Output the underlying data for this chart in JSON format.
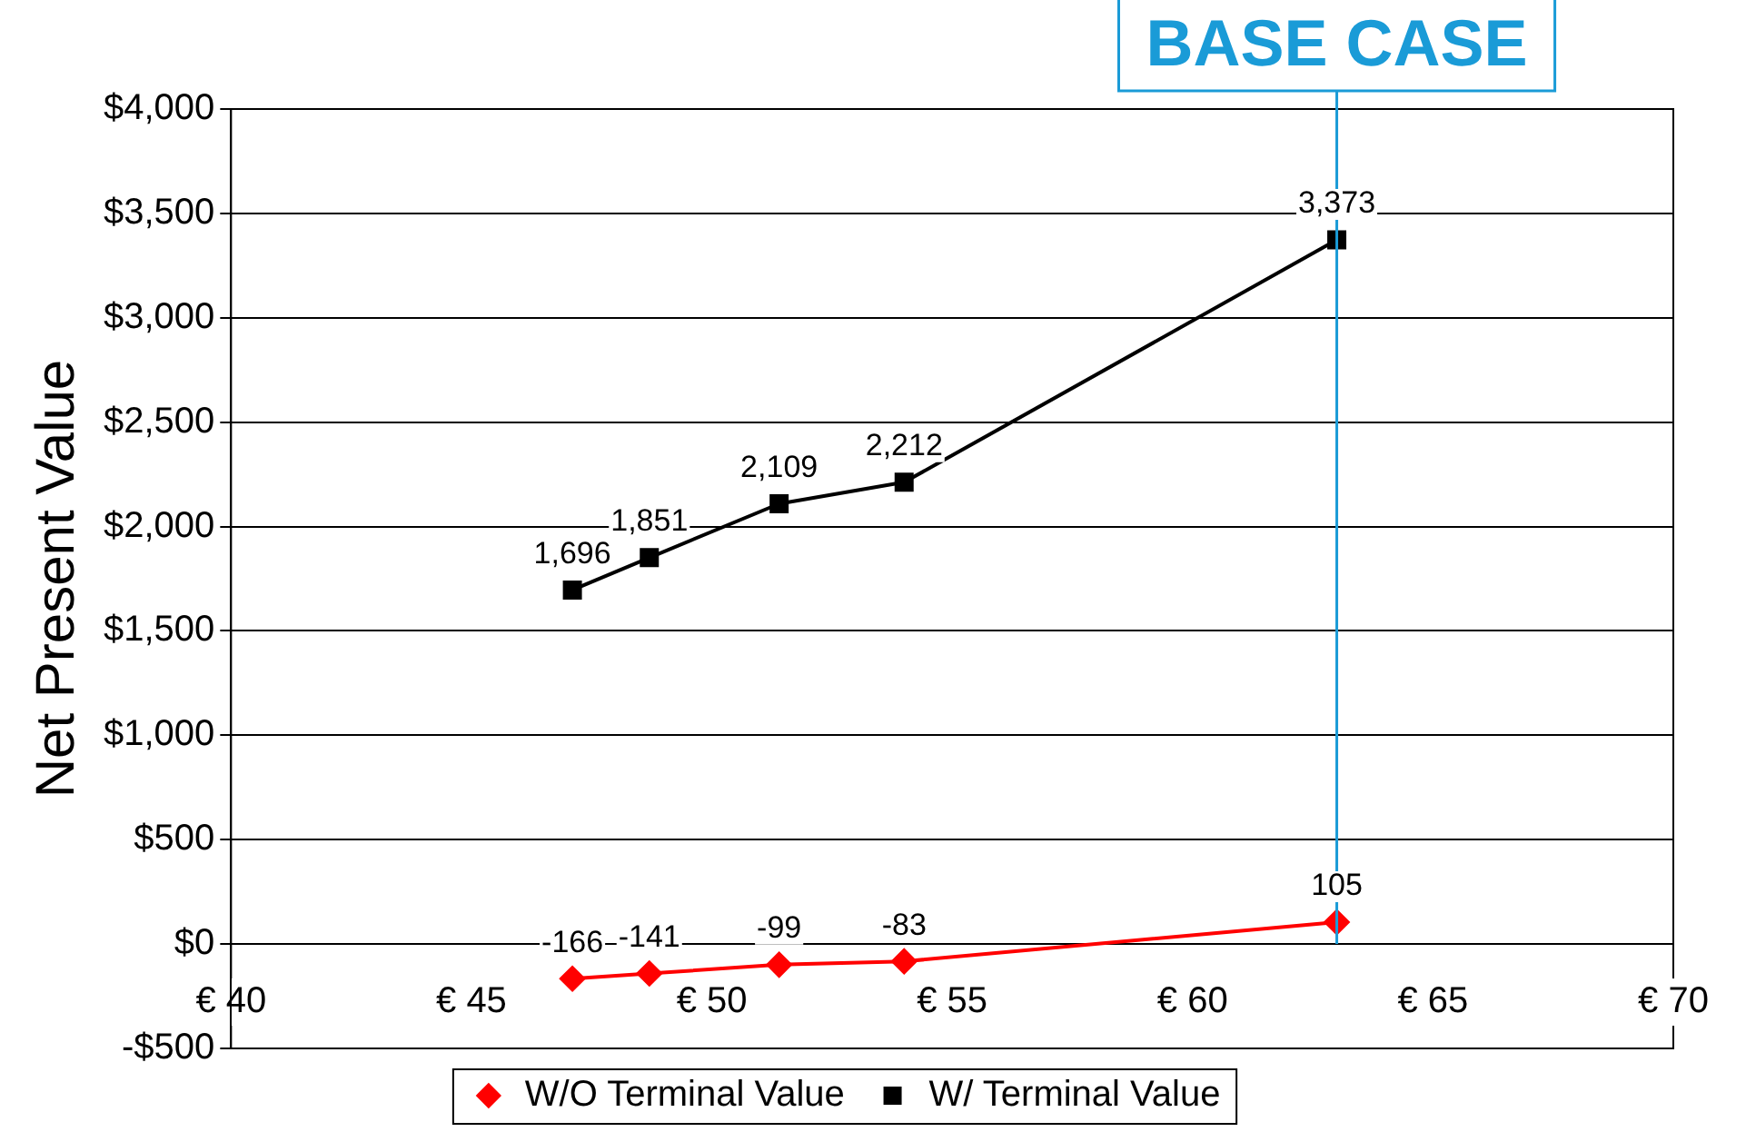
{
  "chart_data": {
    "type": "line",
    "ylabel": "Net Present Value",
    "x": [
      47.1,
      48.7,
      51.4,
      54.0,
      63.0
    ],
    "series": [
      {
        "name": "W/O Terminal Value",
        "color": "#ff0000",
        "marker": "diamond",
        "values": [
          -166,
          -141,
          -99,
          -83,
          105
        ],
        "value_labels": [
          "-166",
          "-141",
          "-99",
          "-83",
          "105"
        ]
      },
      {
        "name": "W/ Terminal Value",
        "color": "#000000",
        "marker": "square",
        "values": [
          1696,
          1851,
          2109,
          2212,
          3373
        ],
        "value_labels": [
          "1,696",
          "1,851",
          "2,109",
          "2,212",
          "3,373"
        ]
      }
    ],
    "xlim": [
      40,
      70
    ],
    "xticks": [
      {
        "value": 40,
        "label": "€ 40"
      },
      {
        "value": 45,
        "label": "€ 45"
      },
      {
        "value": 50,
        "label": "€ 50"
      },
      {
        "value": 55,
        "label": "€ 55"
      },
      {
        "value": 60,
        "label": "€ 60"
      },
      {
        "value": 65,
        "label": "€ 65"
      },
      {
        "value": 70,
        "label": "€ 70"
      }
    ],
    "ylim": [
      -500,
      4000
    ],
    "yticks": [
      {
        "value": -500,
        "label": "-$500"
      },
      {
        "value": 0,
        "label": "$0"
      },
      {
        "value": 500,
        "label": "$500"
      },
      {
        "value": 1000,
        "label": "$1,000"
      },
      {
        "value": 1500,
        "label": "$1,500"
      },
      {
        "value": 2000,
        "label": "$2,000"
      },
      {
        "value": 2500,
        "label": "$2,500"
      },
      {
        "value": 3000,
        "label": "$3,000"
      },
      {
        "value": 3500,
        "label": "$3,500"
      },
      {
        "value": 4000,
        "label": "$4,000"
      }
    ],
    "ref_lines": [
      {
        "axis": "x",
        "value": 63,
        "label": "BASE CASE",
        "color": "#1a9bd7"
      }
    ],
    "grid": "y",
    "legend": "bottom",
    "line_style": "solid"
  }
}
